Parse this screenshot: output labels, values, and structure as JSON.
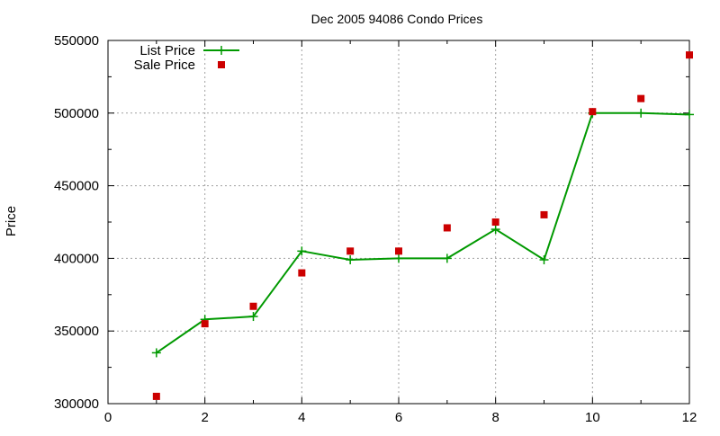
{
  "chart_data": {
    "type": "line",
    "title": "Dec 2005 94086 Condo Prices",
    "xlabel": "",
    "ylabel": "Price",
    "xlim": [
      0,
      12
    ],
    "ylim": [
      300000,
      550000
    ],
    "xticks": [
      0,
      2,
      4,
      6,
      8,
      10,
      12
    ],
    "yticks": [
      300000,
      350000,
      400000,
      450000,
      500000,
      550000
    ],
    "grid": true,
    "legend_position": "top-left",
    "series": [
      {
        "name": "List Price",
        "type": "line",
        "marker": "plus",
        "color": "#009900",
        "x": [
          1,
          2,
          3,
          4,
          5,
          6,
          7,
          8,
          9,
          10,
          11,
          12
        ],
        "y": [
          335000,
          358000,
          360000,
          405000,
          399000,
          400000,
          400000,
          420000,
          399000,
          500000,
          500000,
          499000
        ]
      },
      {
        "name": "Sale Price",
        "type": "scatter",
        "marker": "square",
        "color": "#cc0000",
        "x": [
          1,
          2,
          3,
          4,
          5,
          6,
          7,
          8,
          9,
          10,
          11,
          12
        ],
        "y": [
          305000,
          355000,
          367000,
          390000,
          405000,
          405000,
          421000,
          425000,
          430000,
          501000,
          510000,
          540000
        ]
      }
    ]
  }
}
